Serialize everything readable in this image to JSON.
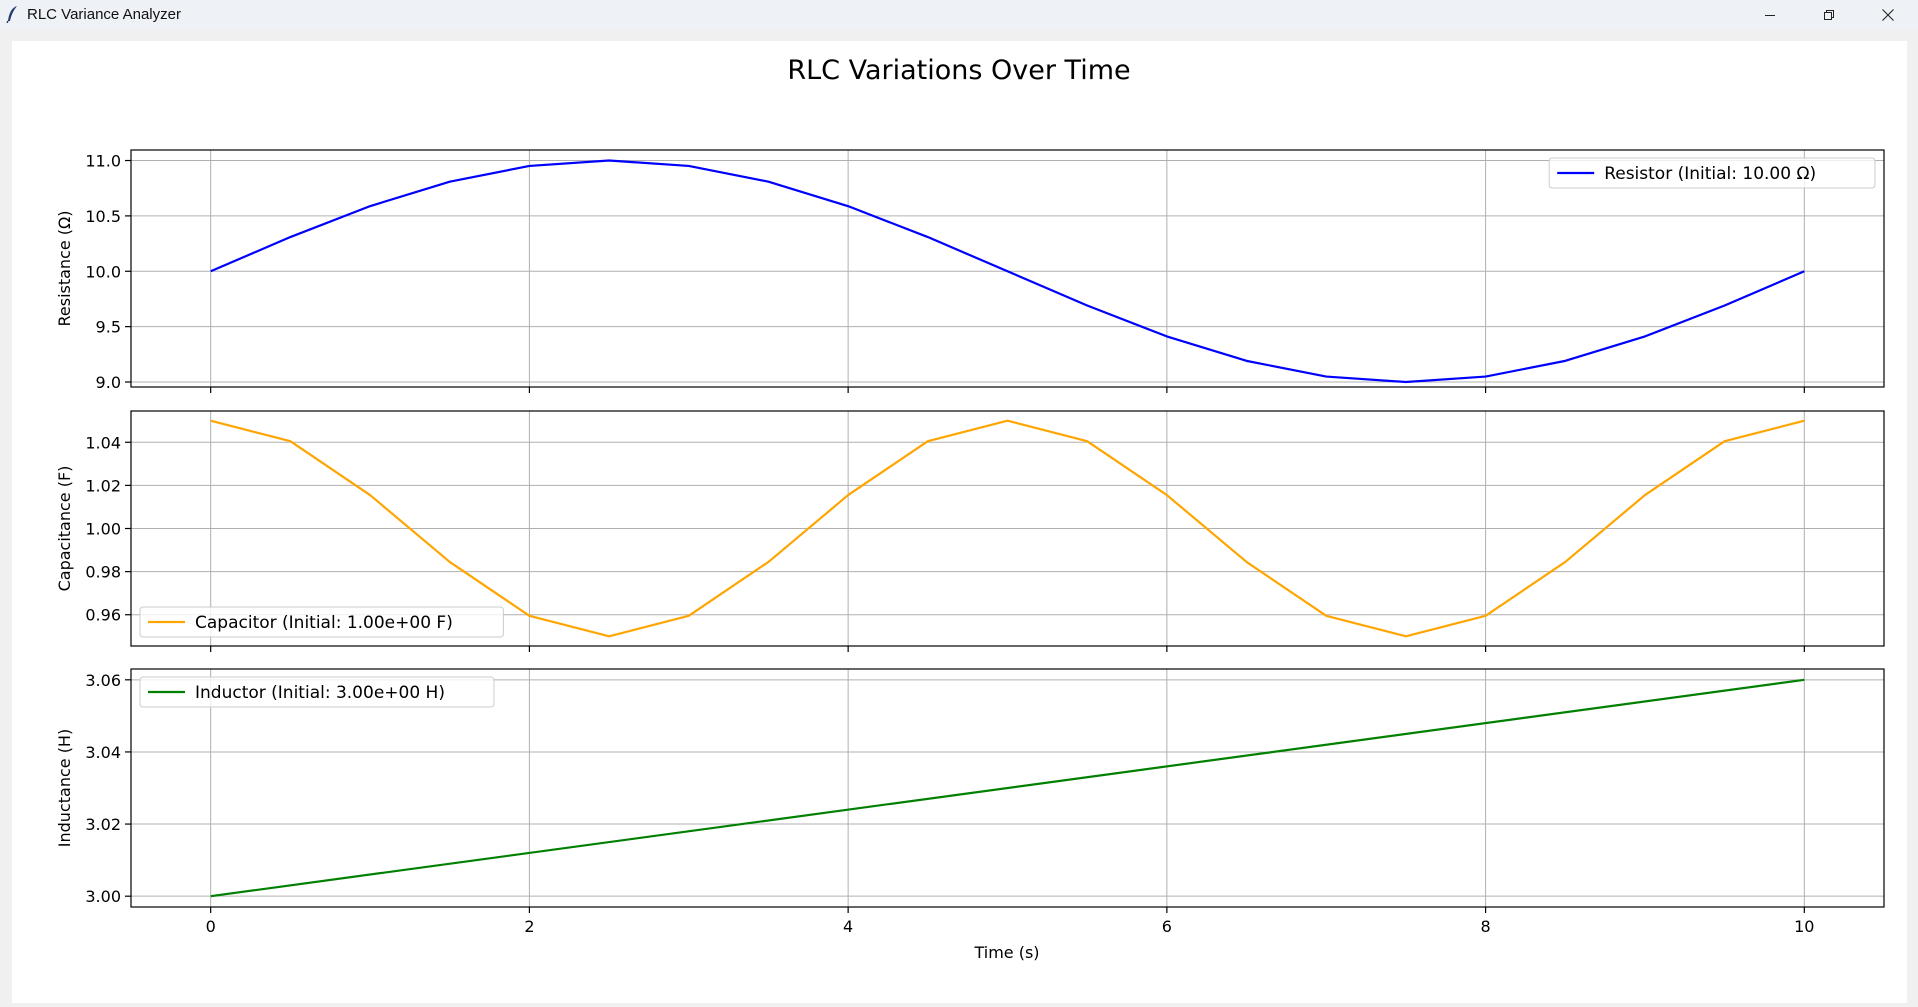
{
  "window": {
    "title": "RLC Variance Analyzer",
    "icon": "feather-icon",
    "controls": [
      "minimize-icon",
      "restore-icon",
      "close-icon"
    ]
  },
  "chart_data": {
    "type": "line",
    "title": "RLC Variations Over Time",
    "xlabel": "Time (s)",
    "xlim": [
      -0.5,
      10.5
    ],
    "xticks": [
      0,
      2,
      4,
      6,
      8,
      10
    ],
    "xtick_labels": [
      "0",
      "2",
      "4",
      "6",
      "8",
      "10"
    ],
    "grid": true,
    "shared_x": true,
    "subplots": [
      {
        "ylabel": "Resistance (Ω)",
        "ylim": [
          8.955,
          11.095
        ],
        "yticks": [
          9.0,
          9.5,
          10.0,
          10.5,
          11.0
        ],
        "ytick_labels": [
          "9.0",
          "9.5",
          "10.0",
          "10.5",
          "11.0"
        ],
        "legend_loc": "upper right",
        "series": [
          {
            "name": "Resistor (Initial: 10.00 Ω)",
            "color": "#0000ff",
            "x": [
              0,
              0.5,
              1,
              1.5,
              2,
              2.5,
              3,
              3.5,
              4,
              4.5,
              5,
              5.5,
              6,
              6.5,
              7,
              7.5,
              8,
              8.5,
              9,
              9.5,
              10
            ],
            "y": [
              10.0,
              10.309,
              10.588,
              10.809,
              10.951,
              11.0,
              10.951,
              10.809,
              10.588,
              10.309,
              10.0,
              9.691,
              9.412,
              9.191,
              9.049,
              9.0,
              9.049,
              9.191,
              9.412,
              9.691,
              10.0
            ]
          }
        ]
      },
      {
        "ylabel": "Capacitance (F)",
        "ylim": [
          0.9455,
          1.0545
        ],
        "yticks": [
          0.96,
          0.98,
          1.0,
          1.02,
          1.04
        ],
        "ytick_labels": [
          "0.96",
          "0.98",
          "1.00",
          "1.02",
          "1.04"
        ],
        "legend_loc": "lower left",
        "series": [
          {
            "name": "Capacitor (Initial: 1.00e+00 F)",
            "color": "#ffa500",
            "x": [
              0,
              0.5,
              1,
              1.5,
              2,
              2.5,
              3,
              3.5,
              4,
              4.5,
              5,
              5.5,
              6,
              6.5,
              7,
              7.5,
              8,
              8.5,
              9,
              9.5,
              10
            ],
            "y": [
              1.05,
              1.0405,
              1.0155,
              0.9845,
              0.9595,
              0.95,
              0.9595,
              0.9845,
              1.0155,
              1.0405,
              1.05,
              1.0405,
              1.0155,
              0.9845,
              0.9595,
              0.95,
              0.9595,
              0.9845,
              1.0155,
              1.0405,
              1.05
            ]
          }
        ]
      },
      {
        "ylabel": "Inductance (H)",
        "ylim": [
          2.997,
          3.063
        ],
        "yticks": [
          3.0,
          3.02,
          3.04,
          3.06
        ],
        "ytick_labels": [
          "3.00",
          "3.02",
          "3.04",
          "3.06"
        ],
        "legend_loc": "upper left",
        "series": [
          {
            "name": "Inductor (Initial: 3.00e+00 H)",
            "color": "#008000",
            "x": [
              0,
              10
            ],
            "y": [
              3.0,
              3.06
            ]
          }
        ]
      }
    ]
  }
}
